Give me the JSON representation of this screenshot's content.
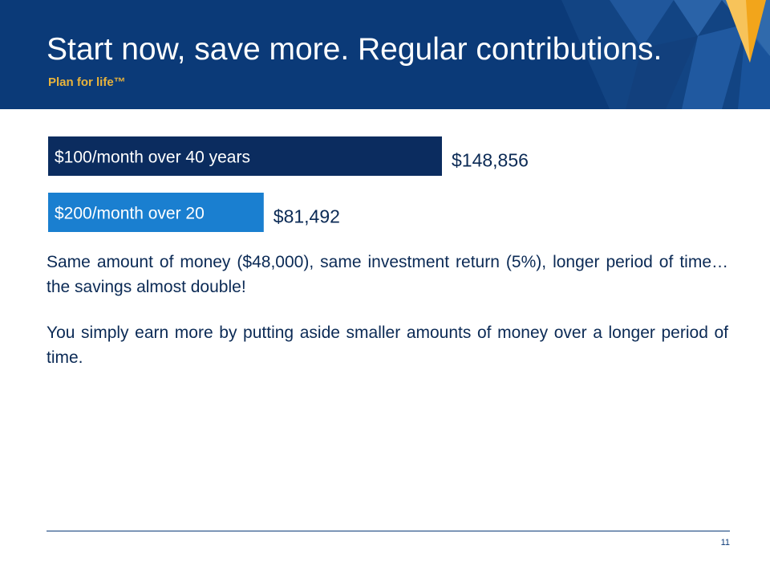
{
  "header": {
    "title": "Start now, save more. Regular contributions.",
    "subtitle": "Plan for life™",
    "brand_color": "#0b3a78",
    "accent_color": "#e8b33c"
  },
  "chart_data": {
    "type": "bar",
    "orientation": "horizontal",
    "categories": [
      "$100/month over 40 years",
      "$200/month over 20"
    ],
    "values": [
      148856,
      81492
    ],
    "value_labels": [
      "$148,856",
      "$81,492"
    ],
    "colors": [
      "#0b2c5f",
      "#1a7fd0"
    ],
    "xlim": [
      0,
      148856
    ],
    "grid": false,
    "legend": "none"
  },
  "body": {
    "paragraph1": "Same amount of money ($48,000), same investment return (5%), longer period of time… the savings almost double!",
    "paragraph2": "You simply earn more by putting aside smaller amounts of money over a longer period of time."
  },
  "footer": {
    "page_number": "11"
  }
}
